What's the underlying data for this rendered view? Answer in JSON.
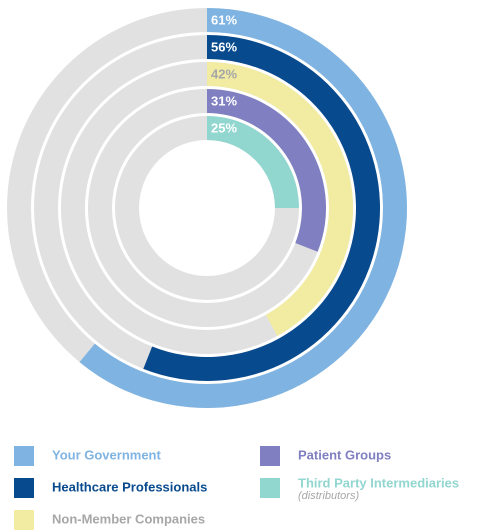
{
  "chart_data": {
    "type": "radial_bar",
    "categories": [
      "Your Government",
      "Healthcare Professionals",
      "Non-Member Companies",
      "Patient Groups",
      "Third Party Intermediaries"
    ],
    "category_notes": [
      null,
      null,
      null,
      null,
      "(distributors)"
    ],
    "values": [
      61,
      56,
      42,
      31,
      25
    ],
    "value_labels": [
      "61%",
      "56%",
      "42%",
      "31%",
      "25%"
    ],
    "colors": [
      "#7fb4e2",
      "#084a8e",
      "#f1eca2",
      "#7f7fc1",
      "#92d6d0"
    ],
    "label_colors": [
      "#ffffff",
      "#ffffff",
      "#a7a7a7",
      "#ffffff",
      "#ffffff"
    ],
    "legend_text_colors": [
      "#7fb4e2",
      "#084a8e",
      "#a7a7a7",
      "#7f7fc1",
      "#92d6d0"
    ],
    "xlim": [
      0,
      100
    ],
    "track_color": "#e1e1e1"
  }
}
